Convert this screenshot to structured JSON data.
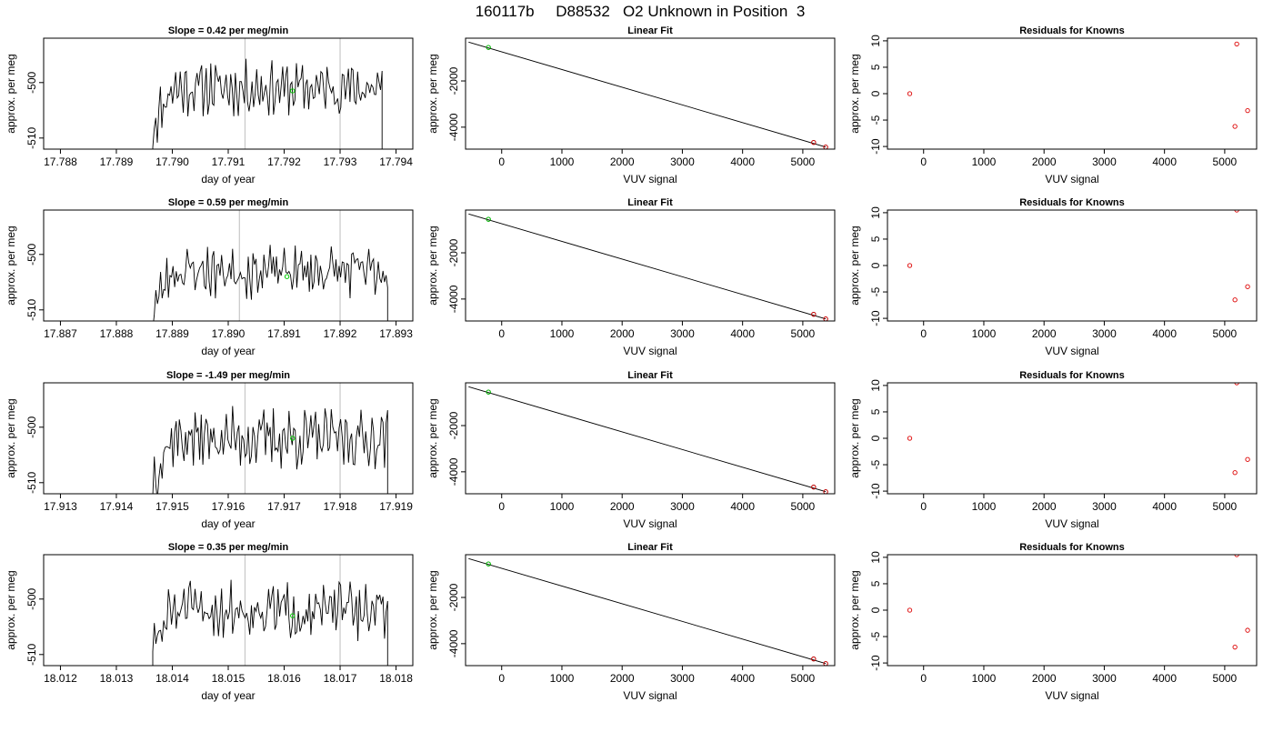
{
  "page_title": "160117b     D88532   O2 Unknown in Position  3",
  "colors": {
    "trace": "#000000",
    "marker": "#00cc00",
    "residual": "#dd0000",
    "vline": "#c8c8c8",
    "fitline": "#000000"
  },
  "chart_data": [
    {
      "type": "line",
      "row": 1,
      "title": "Slope =  0.42  per meg/min",
      "xlabel": "day of year",
      "ylabel": "approx. per meg",
      "xlim": [
        17.7877,
        17.7943
      ],
      "ylim": [
        -512,
        -492
      ],
      "xticks": [
        "17.788",
        "17.789",
        "17.790",
        "17.791",
        "17.792",
        "17.793",
        "17.794"
      ],
      "yticks": [
        "-510",
        "-500"
      ],
      "vlines": [
        17.7913,
        17.793
      ],
      "trace_start": 17.78965,
      "trace_end": 17.79375,
      "trace_mean": -501,
      "trace_amp": 3.5,
      "seed": 11,
      "marker": {
        "x": 17.79215,
        "y": -501.5
      }
    },
    {
      "type": "scatter",
      "row": 1,
      "title": "Linear Fit",
      "xlabel": "VUV signal",
      "ylabel": "approx. per meg",
      "xlim": [
        -600,
        5530
      ],
      "ylim": [
        -4950,
        -150
      ],
      "xticks": [
        "0",
        "1000",
        "2000",
        "3000",
        "4000",
        "5000"
      ],
      "yticks": [
        "-2000",
        "-4000"
      ],
      "fit": {
        "x": [
          -550,
          5380
        ],
        "y": [
          -320,
          -4860
        ]
      },
      "points": [
        {
          "x": -220,
          "y": -550,
          "color": "green"
        },
        {
          "x": 5180,
          "y": -4660,
          "color": "red"
        },
        {
          "x": 5380,
          "y": -4860,
          "color": "red"
        }
      ]
    },
    {
      "type": "scatter",
      "row": 1,
      "title": "Residuals for Knowns",
      "xlabel": "VUV signal",
      "ylabel": "approx. per meg",
      "xlim": [
        -600,
        5530
      ],
      "ylim": [
        -10.5,
        10.5
      ],
      "xticks": [
        "0",
        "1000",
        "2000",
        "3000",
        "4000",
        "5000"
      ],
      "yticks": [
        "-10",
        "-5",
        "0",
        "5",
        "10"
      ],
      "points": [
        {
          "x": -230,
          "y": 0
        },
        {
          "x": 5200,
          "y": 9.4
        },
        {
          "x": 5170,
          "y": -6.2
        },
        {
          "x": 5380,
          "y": -3.2
        }
      ]
    },
    {
      "type": "line",
      "row": 2,
      "title": "Slope =  0.59  per meg/min",
      "xlabel": "day of year",
      "ylabel": "approx. per meg",
      "xlim": [
        17.8867,
        17.8933
      ],
      "ylim": [
        -512,
        -492
      ],
      "xticks": [
        "17.887",
        "17.888",
        "17.889",
        "17.890",
        "17.891",
        "17.892",
        "17.893"
      ],
      "yticks": [
        "-510",
        "-500"
      ],
      "vlines": [
        17.8902,
        17.892
      ],
      "trace_start": 17.88865,
      "trace_end": 17.89285,
      "trace_mean": -503,
      "trace_amp": 3.5,
      "seed": 23,
      "marker": {
        "x": 17.89105,
        "y": -504
      }
    },
    {
      "type": "scatter",
      "row": 2,
      "title": "Linear Fit",
      "xlabel": "VUV signal",
      "ylabel": "approx. per meg",
      "xlim": [
        -600,
        5530
      ],
      "ylim": [
        -4950,
        -150
      ],
      "xticks": [
        "0",
        "1000",
        "2000",
        "3000",
        "4000",
        "5000"
      ],
      "yticks": [
        "-2000",
        "-4000"
      ],
      "fit": {
        "x": [
          -550,
          5380
        ],
        "y": [
          -320,
          -4860
        ]
      },
      "points": [
        {
          "x": -220,
          "y": -550,
          "color": "green"
        },
        {
          "x": 5180,
          "y": -4660,
          "color": "red"
        },
        {
          "x": 5380,
          "y": -4860,
          "color": "red"
        }
      ]
    },
    {
      "type": "scatter",
      "row": 2,
      "title": "Residuals for Knowns",
      "xlabel": "VUV signal",
      "ylabel": "approx. per meg",
      "xlim": [
        -600,
        5530
      ],
      "ylim": [
        -10.5,
        10.5
      ],
      "xticks": [
        "0",
        "1000",
        "2000",
        "3000",
        "4000",
        "5000"
      ],
      "yticks": [
        "-10",
        "-5",
        "0",
        "5",
        "10"
      ],
      "points": [
        {
          "x": -230,
          "y": 0
        },
        {
          "x": 5200,
          "y": 10.5
        },
        {
          "x": 5170,
          "y": -6.5
        },
        {
          "x": 5380,
          "y": -4.0
        }
      ]
    },
    {
      "type": "line",
      "row": 3,
      "title": "Slope =  -1.49  per meg/min",
      "xlabel": "day of year",
      "ylabel": "approx. per meg",
      "xlim": [
        17.9127,
        17.9193
      ],
      "ylim": [
        -512,
        -492
      ],
      "xticks": [
        "17.913",
        "17.914",
        "17.915",
        "17.916",
        "17.917",
        "17.918",
        "17.919"
      ],
      "yticks": [
        "-510",
        "-500"
      ],
      "vlines": [
        17.9163,
        17.918
      ],
      "trace_start": 17.91465,
      "trace_end": 17.91885,
      "trace_mean": -502,
      "trace_amp": 4.0,
      "seed": 37,
      "marker": {
        "x": 17.91715,
        "y": -502
      }
    },
    {
      "type": "scatter",
      "row": 3,
      "title": "Linear Fit",
      "xlabel": "VUV signal",
      "ylabel": "approx. per meg",
      "xlim": [
        -600,
        5530
      ],
      "ylim": [
        -4950,
        -150
      ],
      "xticks": [
        "0",
        "1000",
        "2000",
        "3000",
        "4000",
        "5000"
      ],
      "yticks": [
        "-2000",
        "-4000"
      ],
      "fit": {
        "x": [
          -550,
          5380
        ],
        "y": [
          -320,
          -4860
        ]
      },
      "points": [
        {
          "x": -220,
          "y": -550,
          "color": "green"
        },
        {
          "x": 5180,
          "y": -4660,
          "color": "red"
        },
        {
          "x": 5380,
          "y": -4860,
          "color": "red"
        }
      ]
    },
    {
      "type": "scatter",
      "row": 3,
      "title": "Residuals for Knowns",
      "xlabel": "VUV signal",
      "ylabel": "approx. per meg",
      "xlim": [
        -600,
        5530
      ],
      "ylim": [
        -10.5,
        10.5
      ],
      "xticks": [
        "0",
        "1000",
        "2000",
        "3000",
        "4000",
        "5000"
      ],
      "yticks": [
        "-10",
        "-5",
        "0",
        "5",
        "10"
      ],
      "points": [
        {
          "x": -230,
          "y": 0
        },
        {
          "x": 5200,
          "y": 10.5
        },
        {
          "x": 5170,
          "y": -6.5
        },
        {
          "x": 5380,
          "y": -4.0
        }
      ]
    },
    {
      "type": "line",
      "row": 4,
      "title": "Slope =  0.35  per meg/min",
      "xlabel": "day of year",
      "ylabel": "approx. per meg",
      "xlim": [
        18.0117,
        18.0183
      ],
      "ylim": [
        -512,
        -492
      ],
      "xticks": [
        "18.012",
        "18.013",
        "18.014",
        "18.015",
        "18.016",
        "18.017",
        "18.018"
      ],
      "yticks": [
        "-510",
        "-500"
      ],
      "vlines": [
        18.0153,
        18.017
      ],
      "trace_start": 18.01365,
      "trace_end": 18.01785,
      "trace_mean": -502,
      "trace_amp": 3.8,
      "seed": 51,
      "marker": {
        "x": 18.01615,
        "y": -503
      }
    },
    {
      "type": "scatter",
      "row": 4,
      "title": "Linear Fit",
      "xlabel": "VUV signal",
      "ylabel": "approx. per meg",
      "xlim": [
        -600,
        5530
      ],
      "ylim": [
        -4950,
        -150
      ],
      "xticks": [
        "0",
        "1000",
        "2000",
        "3000",
        "4000",
        "5000"
      ],
      "yticks": [
        "-2000",
        "-4000"
      ],
      "fit": {
        "x": [
          -550,
          5380
        ],
        "y": [
          -320,
          -4860
        ]
      },
      "points": [
        {
          "x": -220,
          "y": -550,
          "color": "green"
        },
        {
          "x": 5180,
          "y": -4660,
          "color": "red"
        },
        {
          "x": 5380,
          "y": -4860,
          "color": "red"
        }
      ]
    },
    {
      "type": "scatter",
      "row": 4,
      "title": "Residuals for Knowns",
      "xlabel": "VUV signal",
      "ylabel": "approx. per meg",
      "xlim": [
        -600,
        5530
      ],
      "ylim": [
        -10.5,
        10.5
      ],
      "xticks": [
        "0",
        "1000",
        "2000",
        "3000",
        "4000",
        "5000"
      ],
      "yticks": [
        "-10",
        "-5",
        "0",
        "5",
        "10"
      ],
      "points": [
        {
          "x": -230,
          "y": 0
        },
        {
          "x": 5200,
          "y": 10.5
        },
        {
          "x": 5170,
          "y": -7.0
        },
        {
          "x": 5380,
          "y": -3.8
        }
      ]
    }
  ]
}
